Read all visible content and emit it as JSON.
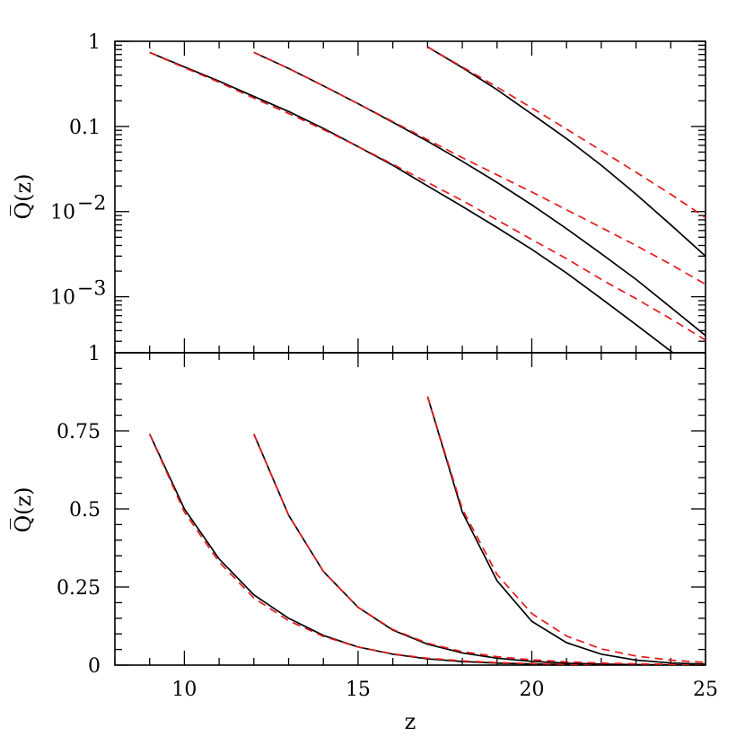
{
  "chart_data": [
    {
      "type": "line",
      "panel": "top",
      "ylabel": "Q̅(z)",
      "xlabel": "",
      "xlim": [
        8,
        25
      ],
      "ylim": [
        0.00022,
        1
      ],
      "yscale": "log",
      "y_tick_labels": [
        {
          "value": 1,
          "label": "1"
        },
        {
          "value": 0.1,
          "label": "0.1"
        },
        {
          "value": 0.01,
          "label": "10",
          "exp": "−2"
        },
        {
          "value": 0.001,
          "label": "10",
          "exp": "−3"
        }
      ],
      "series": [
        {
          "style": "solid",
          "color": "#000000",
          "x": [
            9,
            10,
            11,
            12,
            13,
            14,
            15,
            16,
            17,
            18,
            19,
            20,
            21,
            22,
            23,
            24,
            24.5
          ],
          "y": [
            0.74,
            0.5,
            0.34,
            0.225,
            0.15,
            0.095,
            0.058,
            0.035,
            0.02,
            0.0115,
            0.0065,
            0.0036,
            0.0019,
            0.00095,
            0.00047,
            0.00023,
            0.00016
          ]
        },
        {
          "style": "dashed",
          "color": "#e41a1c",
          "x": [
            9,
            10,
            11,
            12,
            13,
            14,
            15,
            16,
            17,
            18,
            19,
            20,
            21,
            22,
            23,
            24,
            25
          ],
          "y": [
            0.74,
            0.49,
            0.33,
            0.215,
            0.142,
            0.092,
            0.058,
            0.036,
            0.022,
            0.0135,
            0.008,
            0.0047,
            0.0028,
            0.0016,
            0.00095,
            0.00055,
            0.00031
          ]
        },
        {
          "style": "solid",
          "color": "#000000",
          "x": [
            12,
            13,
            14,
            15,
            16,
            17,
            18,
            19,
            20,
            21,
            22,
            23,
            24,
            25
          ],
          "y": [
            0.74,
            0.48,
            0.3,
            0.185,
            0.112,
            0.067,
            0.039,
            0.022,
            0.012,
            0.0063,
            0.0032,
            0.0016,
            0.00075,
            0.00035
          ]
        },
        {
          "style": "dashed",
          "color": "#e41a1c",
          "x": [
            12,
            13,
            14,
            15,
            16,
            17,
            18,
            19,
            20,
            21,
            22,
            23,
            24,
            25
          ],
          "y": [
            0.74,
            0.48,
            0.3,
            0.185,
            0.114,
            0.07,
            0.043,
            0.027,
            0.017,
            0.0105,
            0.0065,
            0.004,
            0.0024,
            0.0014
          ]
        },
        {
          "style": "solid",
          "color": "#000000",
          "x": [
            17,
            18,
            19,
            20,
            21,
            22,
            23,
            24,
            25
          ],
          "y": [
            0.86,
            0.49,
            0.27,
            0.14,
            0.072,
            0.035,
            0.016,
            0.007,
            0.003
          ]
        },
        {
          "style": "dashed",
          "color": "#e41a1c",
          "x": [
            17,
            18,
            19,
            20,
            21,
            22,
            23,
            24,
            25
          ],
          "y": [
            0.86,
            0.5,
            0.29,
            0.165,
            0.093,
            0.052,
            0.029,
            0.016,
            0.0085
          ]
        }
      ]
    },
    {
      "type": "line",
      "panel": "bottom",
      "ylabel": "Q̅(z)",
      "xlabel": "z",
      "xlim": [
        8,
        25
      ],
      "ylim": [
        0,
        1
      ],
      "yscale": "linear",
      "x_tick_labels": [
        {
          "value": 10,
          "label": "10"
        },
        {
          "value": 15,
          "label": "15"
        },
        {
          "value": 20,
          "label": "20"
        },
        {
          "value": 25,
          "label": "25"
        }
      ],
      "y_tick_labels": [
        {
          "value": 1,
          "label": "1"
        },
        {
          "value": 0.75,
          "label": "0.75"
        },
        {
          "value": 0.5,
          "label": "0.5"
        },
        {
          "value": 0.25,
          "label": "0.25"
        },
        {
          "value": 0,
          "label": "0"
        }
      ],
      "series": [
        {
          "style": "solid",
          "color": "#000000",
          "x": [
            9,
            10,
            11,
            12,
            13,
            14,
            15,
            16,
            17,
            18,
            19,
            20,
            21,
            22,
            23,
            24,
            25
          ],
          "y": [
            0.74,
            0.5,
            0.34,
            0.225,
            0.15,
            0.095,
            0.058,
            0.035,
            0.02,
            0.0115,
            0.0065,
            0.0036,
            0.0019,
            0.00095,
            0.00047,
            0.00023,
            0.0001
          ]
        },
        {
          "style": "dashed",
          "color": "#e41a1c",
          "x": [
            9,
            10,
            11,
            12,
            13,
            14,
            15,
            16,
            17,
            18,
            19,
            20,
            21,
            22,
            23,
            24,
            25
          ],
          "y": [
            0.74,
            0.49,
            0.33,
            0.215,
            0.142,
            0.092,
            0.058,
            0.036,
            0.022,
            0.0135,
            0.008,
            0.0047,
            0.0028,
            0.0016,
            0.00095,
            0.00055,
            0.00031
          ]
        },
        {
          "style": "solid",
          "color": "#000000",
          "x": [
            12,
            13,
            14,
            15,
            16,
            17,
            18,
            19,
            20,
            21,
            22,
            23,
            24,
            25
          ],
          "y": [
            0.74,
            0.48,
            0.3,
            0.185,
            0.112,
            0.067,
            0.039,
            0.022,
            0.012,
            0.0063,
            0.0032,
            0.0016,
            0.00075,
            0.00035
          ]
        },
        {
          "style": "dashed",
          "color": "#e41a1c",
          "x": [
            12,
            13,
            14,
            15,
            16,
            17,
            18,
            19,
            20,
            21,
            22,
            23,
            24,
            25
          ],
          "y": [
            0.74,
            0.48,
            0.3,
            0.185,
            0.114,
            0.07,
            0.043,
            0.027,
            0.017,
            0.0105,
            0.0065,
            0.004,
            0.0024,
            0.0014
          ]
        },
        {
          "style": "solid",
          "color": "#000000",
          "x": [
            17,
            18,
            19,
            20,
            21,
            22,
            23,
            24,
            25
          ],
          "y": [
            0.86,
            0.49,
            0.27,
            0.14,
            0.072,
            0.035,
            0.016,
            0.007,
            0.003
          ]
        },
        {
          "style": "dashed",
          "color": "#e41a1c",
          "x": [
            17,
            18,
            19,
            20,
            21,
            22,
            23,
            24,
            25
          ],
          "y": [
            0.86,
            0.5,
            0.29,
            0.165,
            0.093,
            0.052,
            0.029,
            0.016,
            0.0085
          ]
        }
      ]
    }
  ]
}
